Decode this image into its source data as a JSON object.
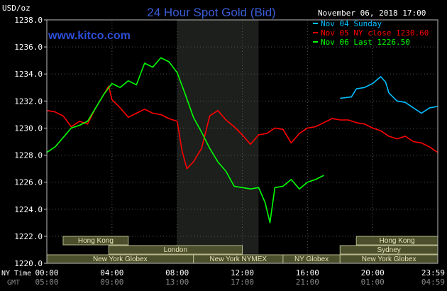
{
  "header": {
    "title": "24 Hour Spot Gold (Bid)",
    "watermark": "www.kitco.com",
    "date_line": "November 06, 2018 17:00",
    "unit_label": "USD/oz"
  },
  "labels": {
    "ny_time": "NY Time",
    "gmt": "GMT"
  },
  "sessions": [
    {
      "name": "Hong Kong",
      "row": 0,
      "start_h": 1.0,
      "end_h": 5.0
    },
    {
      "name": "London",
      "row": 1,
      "start_h": 3.8,
      "end_h": 12.0
    },
    {
      "name": "New York Globex",
      "row": 2,
      "start_h": 0.0,
      "end_h": 9.0
    },
    {
      "name": "New York NYMEX",
      "row": 2,
      "start_h": 9.0,
      "end_h": 14.5
    },
    {
      "name": "NY Globex",
      "row": 2,
      "start_h": 14.5,
      "end_h": 18.0
    },
    {
      "name": "Hong Kong",
      "row": 0,
      "start_h": 19.0,
      "end_h": 24.0
    },
    {
      "name": "Sydney",
      "row": 1,
      "start_h": 18.0,
      "end_h": 24.0
    },
    {
      "name": "New York Globex",
      "row": 2,
      "start_h": 18.0,
      "end_h": 24.0
    }
  ],
  "chart_data": {
    "type": "line",
    "title": "24 Hour Spot Gold (Bid)",
    "ylabel": "USD/oz",
    "ylim": [
      1220.0,
      1238.0
    ],
    "y_ticks": [
      "1220.0",
      "1222.0",
      "1224.0",
      "1226.0",
      "1228.0",
      "1230.0",
      "1232.0",
      "1234.0",
      "1236.0",
      "1238.0"
    ],
    "xlim_hours": [
      0,
      24
    ],
    "x_ticks_ny": [
      "00:00",
      "04:00",
      "08:00",
      "12:00",
      "16:00",
      "20:00",
      "23:59"
    ],
    "x_ticks_gmt": [
      "05:00",
      "09:00",
      "13:00",
      "17:00",
      "21:00",
      "01:00",
      "04:59"
    ],
    "shaded_region_hours": [
      8.0,
      13.0
    ],
    "grid": true,
    "legend_position": "top-right",
    "series": [
      {
        "name": "Nov 04 Sunday",
        "color": "#00bfff",
        "x": [
          18.0,
          18.7,
          19.0,
          19.5,
          20.0,
          20.5,
          20.8,
          21.0,
          21.5,
          22.0,
          22.5,
          23.0,
          23.5,
          23.99
        ],
        "y": [
          1232.2,
          1232.3,
          1232.9,
          1233.0,
          1233.3,
          1233.8,
          1233.4,
          1232.6,
          1232.0,
          1231.9,
          1231.5,
          1231.1,
          1231.5,
          1231.6
        ]
      },
      {
        "name": "Nov 05 NY close 1230.60",
        "color": "#ff0000",
        "x": [
          0.0,
          0.5,
          1.0,
          1.5,
          2.0,
          2.5,
          3.0,
          3.5,
          3.8,
          4.0,
          4.5,
          5.0,
          5.5,
          6.0,
          6.5,
          7.0,
          7.5,
          8.0,
          8.3,
          8.6,
          9.0,
          9.5,
          10.0,
          10.5,
          11.0,
          11.5,
          12.0,
          12.5,
          13.0,
          13.5,
          14.0,
          14.5,
          15.0,
          15.5,
          16.0,
          16.5,
          17.0,
          17.5,
          18.0,
          18.5,
          19.0,
          19.5,
          20.0,
          20.5,
          21.0,
          21.5,
          22.0,
          22.5,
          23.0,
          23.5,
          23.99
        ],
        "y": [
          1231.3,
          1231.2,
          1230.9,
          1230.1,
          1230.5,
          1230.3,
          1231.5,
          1232.5,
          1233.1,
          1232.1,
          1231.5,
          1230.8,
          1231.1,
          1231.4,
          1231.1,
          1231.0,
          1230.7,
          1230.5,
          1228.3,
          1227.0,
          1227.5,
          1228.5,
          1230.9,
          1231.3,
          1230.6,
          1230.1,
          1229.5,
          1228.8,
          1229.5,
          1229.6,
          1230.0,
          1229.9,
          1228.9,
          1229.6,
          1230.0,
          1230.1,
          1230.4,
          1230.7,
          1230.6,
          1230.6,
          1230.4,
          1230.3,
          1230.0,
          1229.8,
          1229.4,
          1229.2,
          1229.4,
          1229.0,
          1228.9,
          1228.6,
          1228.2
        ]
      },
      {
        "name": "Nov 06 Last 1226.50",
        "color": "#00ff00",
        "x": [
          0.0,
          0.5,
          1.0,
          1.5,
          2.0,
          2.5,
          3.0,
          3.5,
          4.0,
          4.5,
          5.0,
          5.5,
          6.0,
          6.5,
          7.0,
          7.5,
          8.0,
          8.5,
          9.0,
          9.5,
          10.0,
          10.5,
          11.0,
          11.5,
          12.0,
          12.5,
          13.0,
          13.4,
          13.7,
          14.0,
          14.5,
          15.0,
          15.5,
          16.0,
          16.5,
          17.0
        ],
        "y": [
          1228.2,
          1228.6,
          1229.3,
          1230.0,
          1230.2,
          1230.5,
          1231.5,
          1232.5,
          1233.3,
          1233.0,
          1233.5,
          1233.2,
          1234.8,
          1234.5,
          1235.2,
          1234.9,
          1234.1,
          1232.5,
          1230.8,
          1229.7,
          1228.5,
          1227.5,
          1226.8,
          1225.7,
          1225.6,
          1225.5,
          1225.6,
          1224.5,
          1223.0,
          1225.6,
          1225.7,
          1226.2,
          1225.5,
          1226.0,
          1226.2,
          1226.5
        ]
      }
    ]
  }
}
